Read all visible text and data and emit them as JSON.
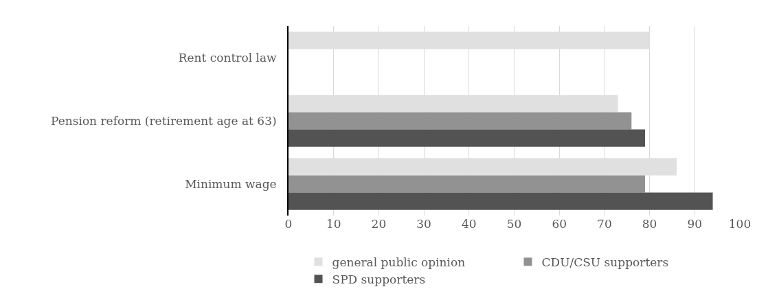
{
  "chart_data": {
    "type": "bar",
    "orientation": "horizontal",
    "categories": [
      "Rent control law",
      "Pension reform (retirement age at 63)",
      "Minimum wage"
    ],
    "series": [
      {
        "name": "general public opinion",
        "color": "#e0e0e0",
        "values": [
          80,
          73,
          86
        ]
      },
      {
        "name": "CDU/CSU supporters",
        "color": "#929292",
        "values": [
          null,
          76,
          79
        ]
      },
      {
        "name": "SPD supporters",
        "color": "#535353",
        "values": [
          null,
          79,
          94
        ]
      }
    ],
    "xlim": [
      0,
      100
    ],
    "xticks": [
      0,
      10,
      20,
      30,
      40,
      50,
      60,
      70,
      80,
      90,
      100
    ],
    "grid": "x",
    "legend": "bottom"
  }
}
